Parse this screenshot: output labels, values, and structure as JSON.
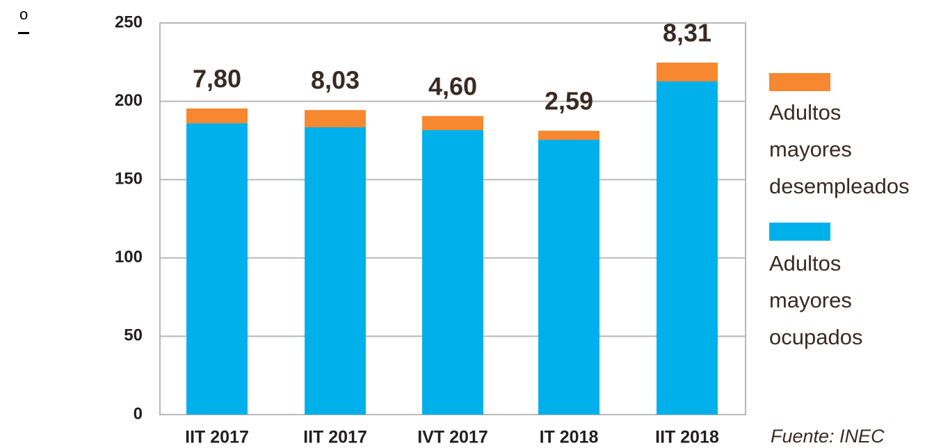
{
  "corner_mark": "o",
  "chart_data": {
    "type": "stacked-bar",
    "categories": [
      "IIT 2017",
      "IIT 2017",
      "IVT 2017",
      "IT 2018",
      "IIT 2018"
    ],
    "series": [
      {
        "name": "Adultos mayores ocupados",
        "color": "#00b0ea",
        "values": [
          186,
          183.4,
          181.6,
          175.4,
          212.7
        ]
      },
      {
        "name": "Adultos mayores desempleados",
        "color": "#f7882f",
        "values": [
          9.4,
          11,
          9,
          5.8,
          12
        ]
      }
    ],
    "rate_labels": [
      "7,80",
      "8,03",
      "4,60",
      "2,59",
      "8,31"
    ],
    "ylim": [
      0,
      250
    ],
    "yticks": [
      0,
      50,
      100,
      150,
      200,
      250
    ],
    "grid": true,
    "source": "Fuente: INEC"
  }
}
